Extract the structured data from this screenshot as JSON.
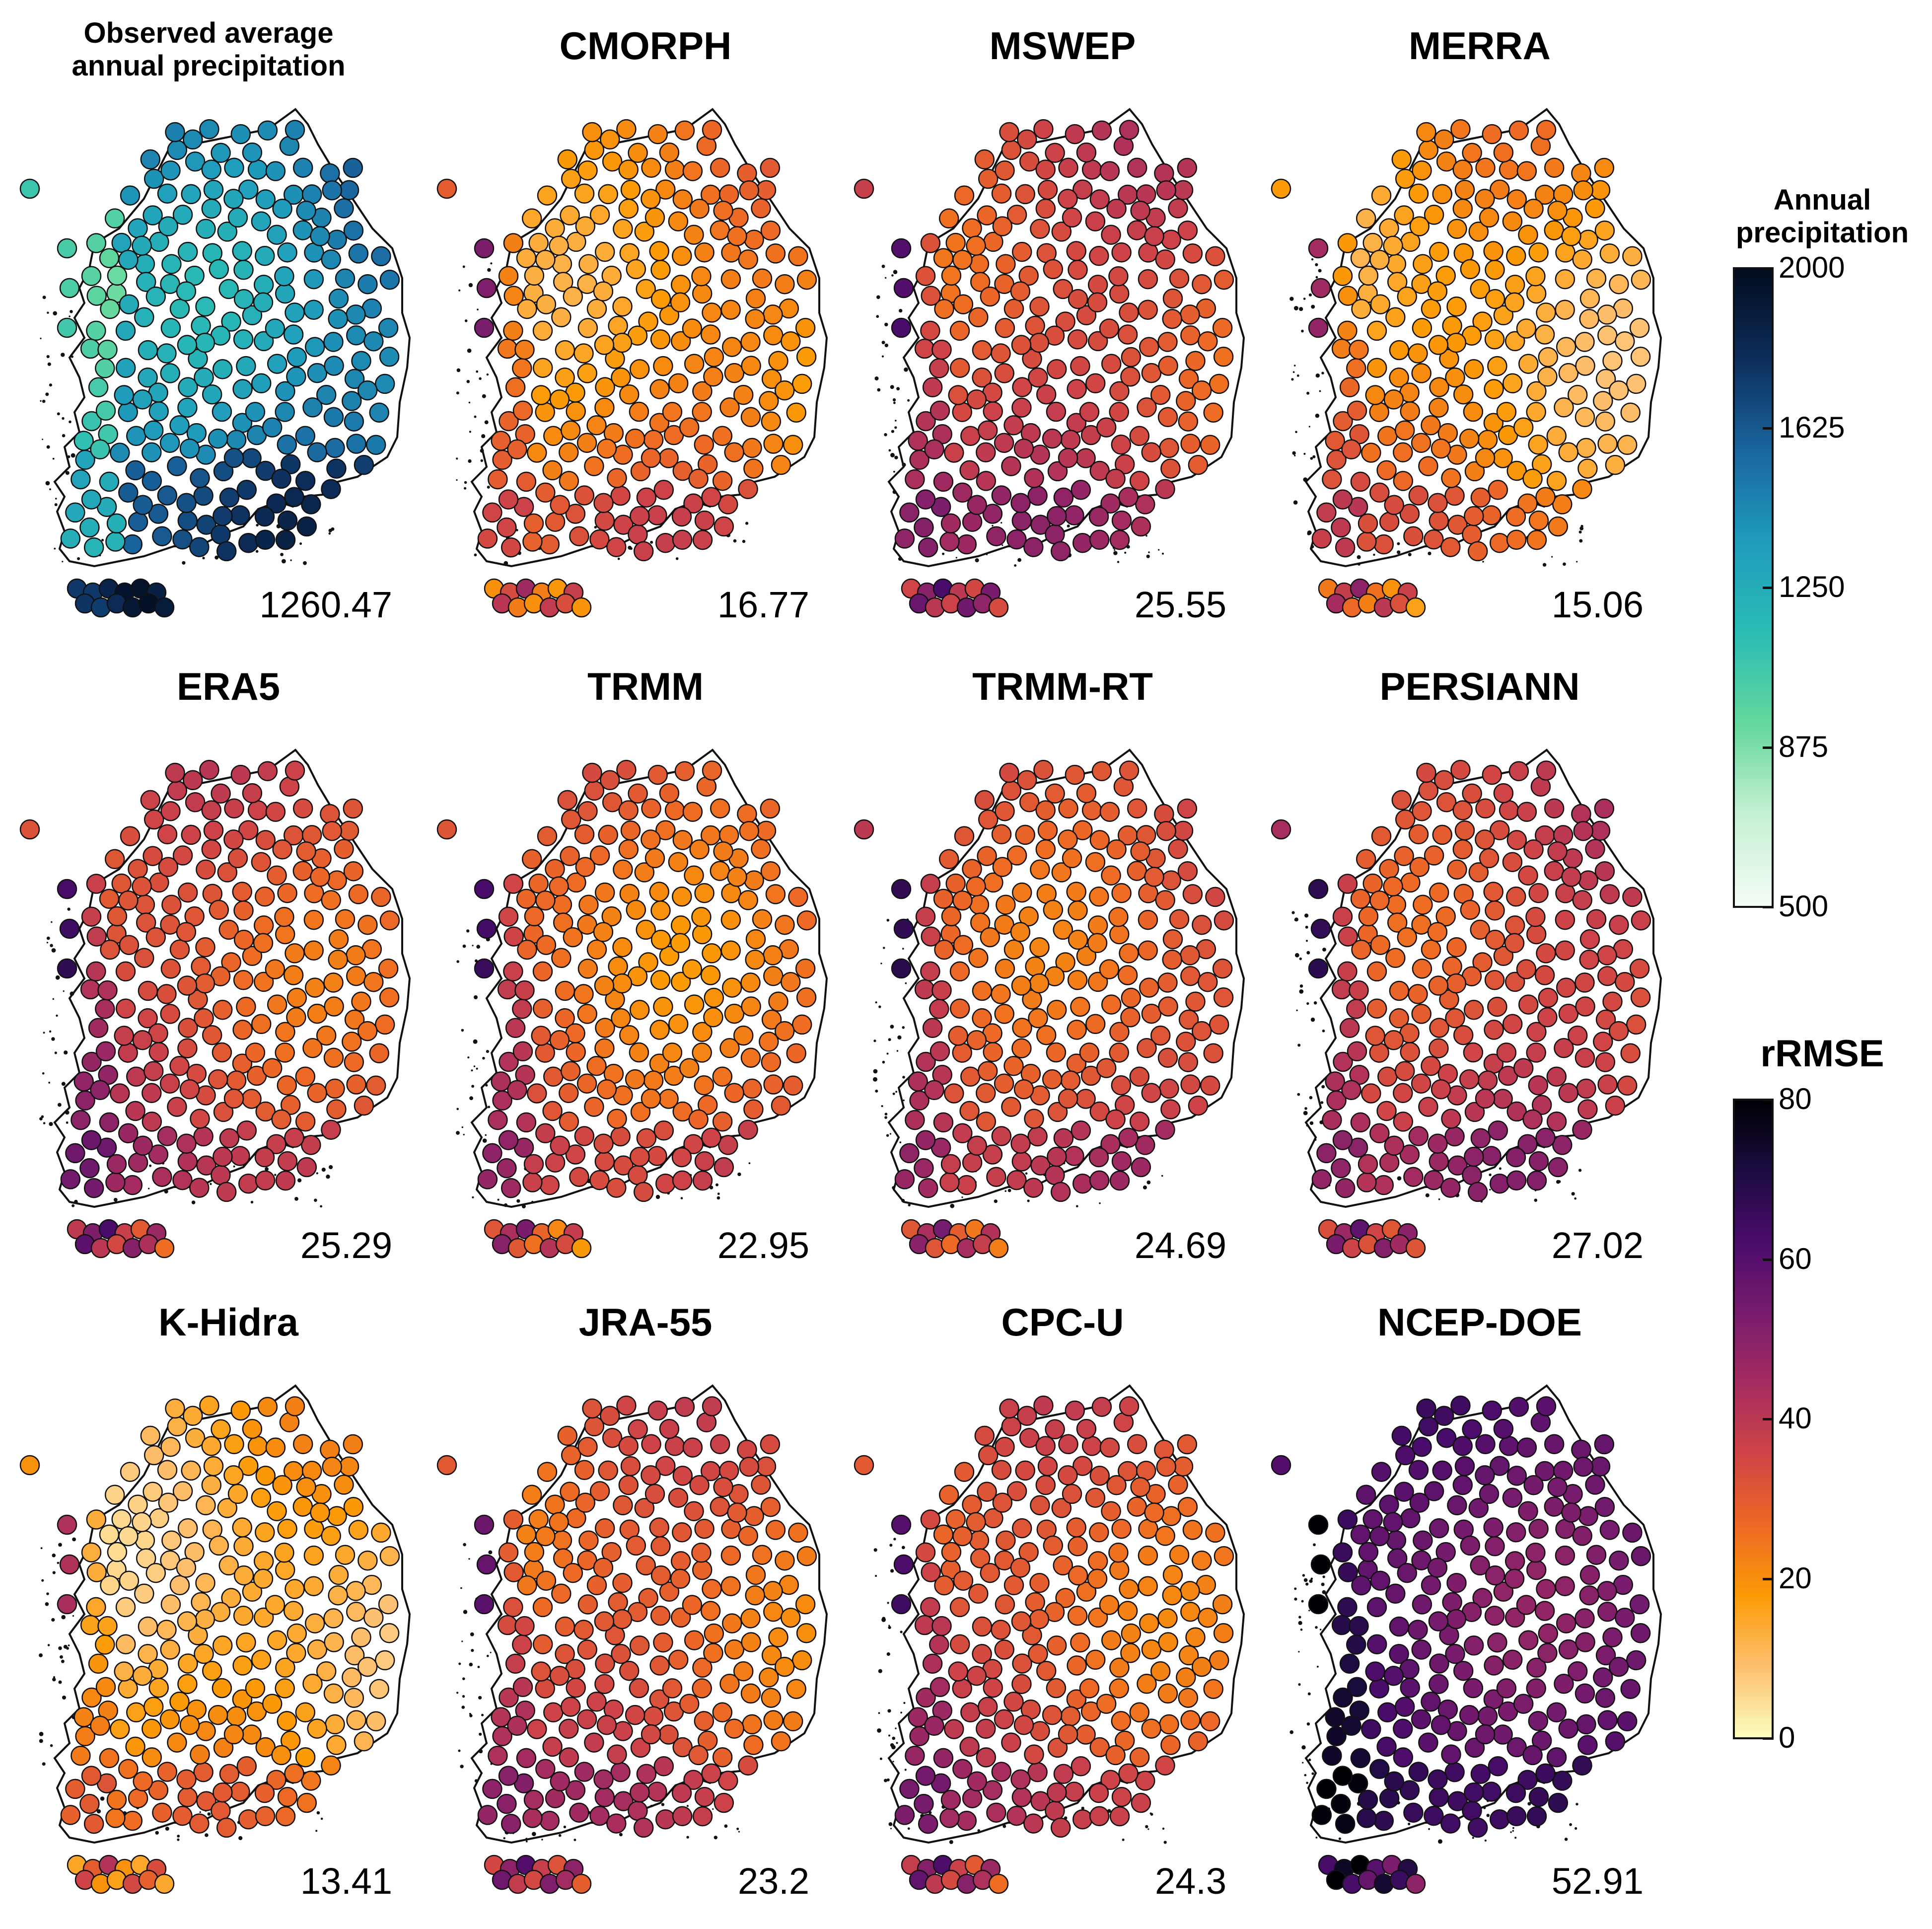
{
  "figure": {
    "panels": [
      {
        "id": "observed",
        "title": "Observed average annual precipitation",
        "title_lines": [
          "Observed average",
          "annual precipitation"
        ],
        "value": "1260.47",
        "scale": "precip"
      },
      {
        "id": "cmorph",
        "title": "CMORPH",
        "value": "16.77",
        "scale": "rrmse",
        "level": 0.27
      },
      {
        "id": "mswep",
        "title": "MSWEP",
        "value": "25.55",
        "scale": "rrmse",
        "level": 0.42
      },
      {
        "id": "merra",
        "title": "MERRA",
        "value": "15.06",
        "scale": "rrmse",
        "level": 0.22
      },
      {
        "id": "era5",
        "title": "ERA5",
        "value": "25.29",
        "scale": "rrmse",
        "level": 0.4
      },
      {
        "id": "trmm",
        "title": "TRMM",
        "value": "22.95",
        "scale": "rrmse",
        "level": 0.34
      },
      {
        "id": "trmm-rt",
        "title": "TRMM-RT",
        "value": "24.69",
        "scale": "rrmse",
        "level": 0.39
      },
      {
        "id": "persiann",
        "title": "PERSIANN",
        "value": "27.02",
        "scale": "rrmse",
        "level": 0.44
      },
      {
        "id": "k-hidra",
        "title": "K-Hidra",
        "value": "13.41",
        "scale": "rrmse",
        "level": 0.18
      },
      {
        "id": "jra-55",
        "title": "JRA-55",
        "value": "23.2",
        "scale": "rrmse",
        "level": 0.37
      },
      {
        "id": "cpc-u",
        "title": "CPC-U",
        "value": "24.3",
        "scale": "rrmse",
        "level": 0.38
      },
      {
        "id": "ncep-doe",
        "title": "NCEP-DOE",
        "value": "52.91",
        "scale": "rrmse",
        "level": 0.72
      }
    ]
  },
  "legends": {
    "precip": {
      "title_lines": [
        "Annual",
        "precipitation"
      ],
      "ticks": [
        "2000",
        "1625",
        "1250",
        "875",
        "500"
      ],
      "colors": [
        "#020c1f",
        "#0d2e5c",
        "#1a66a0",
        "#1f9cbc",
        "#2bbcb4",
        "#64d89d",
        "#c6f0d3",
        "#f4fcf6"
      ]
    },
    "rrmse": {
      "title": "rRMSE",
      "ticks": [
        "80",
        "60",
        "40",
        "20",
        "0"
      ],
      "colors": [
        "#000004",
        "#1b0c41",
        "#4a0c6b",
        "#781c6d",
        "#a52c60",
        "#cf4446",
        "#ed6925",
        "#fb9b06",
        "#fdbf6f",
        "#fcfdbf"
      ]
    }
  }
}
